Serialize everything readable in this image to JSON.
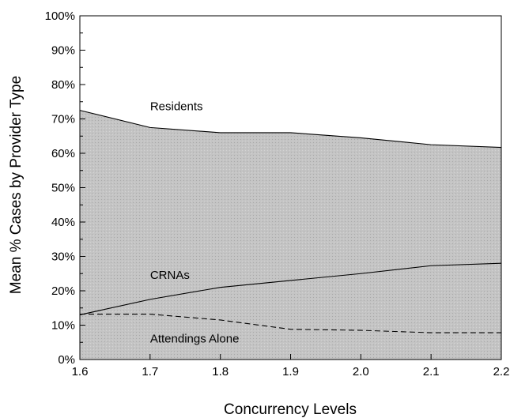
{
  "chart_data": {
    "type": "area",
    "title": "",
    "xlabel": "Concurrency Levels",
    "ylabel": "Mean % Cases by Provider Type",
    "xlim": [
      1.6,
      2.2
    ],
    "ylim": [
      0,
      100
    ],
    "x": [
      1.6,
      1.7,
      1.8,
      1.9,
      2.0,
      2.1,
      2.2
    ],
    "x_tick_labels": [
      "1.6",
      "1.7",
      "1.8",
      "1.9",
      "2.0",
      "2.1",
      "2.2"
    ],
    "y_ticks": [
      0,
      10,
      20,
      30,
      40,
      50,
      60,
      70,
      80,
      90,
      100
    ],
    "y_tick_labels": [
      "0%",
      "10%",
      "20%",
      "30%",
      "40%",
      "50%",
      "60%",
      "70%",
      "80%",
      "90%",
      "100%"
    ],
    "grid": false,
    "legend": "none",
    "series": [
      {
        "name": "Residents",
        "line": "solid",
        "values": [
          72.5,
          67.5,
          66,
          66,
          64.5,
          62.5,
          61.7
        ]
      },
      {
        "name": "CRNAs",
        "line": "solid",
        "values": [
          13,
          17.5,
          21,
          23,
          25,
          27.3,
          28
        ]
      },
      {
        "name": "Attendings Alone",
        "line": "dashed",
        "values": [
          13.2,
          13.2,
          11.5,
          8.8,
          8.5,
          7.8,
          7.8
        ]
      }
    ],
    "colors": {
      "fill": "#c4c4c4",
      "line": "#000000",
      "background": "#ffffff"
    }
  }
}
